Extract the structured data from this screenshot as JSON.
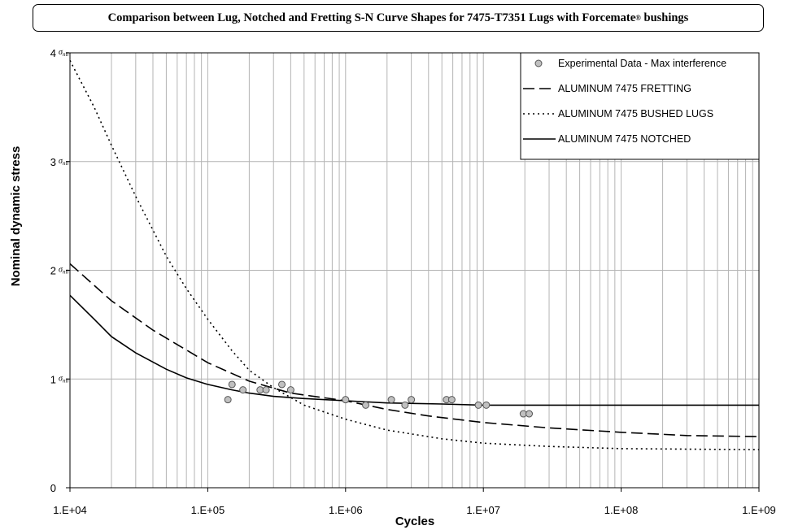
{
  "title": {
    "main": "Comparison between Lug, Notched and Fretting S-N Curve Shapes for 7475-T7351 Lugs with Forcemate",
    "sup": "®",
    "tail": " bushings"
  },
  "chart_data": {
    "type": "line",
    "xlabel": "Cycles",
    "ylabel": "Nominal dynamic stress",
    "x_scale": "log",
    "xlim": [
      10000,
      1000000000
    ],
    "ylim": [
      0,
      4
    ],
    "x_tick_labels": [
      "1.E+04",
      "1.E+05",
      "1.E+06",
      "1.E+07",
      "1.E+08",
      "1.E+09"
    ],
    "y_ticks": [
      0,
      1,
      2,
      3,
      4
    ],
    "y_tick_labels": [
      "0",
      "1",
      "2",
      "3",
      "4"
    ],
    "y_unit_symbol": "σ",
    "y_unit_subscript": "nil",
    "grid": true,
    "legend_position": "top-right",
    "series": [
      {
        "name": "Experimental Data - Max interference",
        "style": "markers",
        "color": "#c0c0c0",
        "points": [
          [
            140000,
            0.81
          ],
          [
            150000,
            0.95
          ],
          [
            180000,
            0.9
          ],
          [
            240000,
            0.9
          ],
          [
            265000,
            0.9
          ],
          [
            345000,
            0.95
          ],
          [
            400000,
            0.9
          ],
          [
            1000000,
            0.81
          ],
          [
            1400000,
            0.76
          ],
          [
            2150000,
            0.81
          ],
          [
            2700000,
            0.76
          ],
          [
            3000000,
            0.81
          ],
          [
            5400000,
            0.81
          ],
          [
            5900000,
            0.81
          ],
          [
            9200000,
            0.76
          ],
          [
            10500000,
            0.76
          ],
          [
            19500000,
            0.68
          ],
          [
            21500000,
            0.68
          ]
        ]
      },
      {
        "name": "ALUMINUM 7475 FRETTING",
        "style": "dashed",
        "color": "#000000",
        "points": [
          [
            10000,
            2.06
          ],
          [
            20000,
            1.72
          ],
          [
            40000,
            1.45
          ],
          [
            100000,
            1.15
          ],
          [
            200000,
            0.98
          ],
          [
            400000,
            0.87
          ],
          [
            1000000,
            0.8
          ],
          [
            2000000,
            0.72
          ],
          [
            4000000,
            0.66
          ],
          [
            10000000,
            0.6
          ],
          [
            30000000,
            0.55
          ],
          [
            100000000,
            0.51
          ],
          [
            300000000,
            0.48
          ],
          [
            1000000000,
            0.47
          ]
        ]
      },
      {
        "name": "ALUMINUM 7475 BUSHED LUGS",
        "style": "dotted",
        "color": "#000000",
        "points": [
          [
            10000,
            3.93
          ],
          [
            15000,
            3.5
          ],
          [
            20000,
            3.15
          ],
          [
            30000,
            2.68
          ],
          [
            50000,
            2.13
          ],
          [
            70000,
            1.83
          ],
          [
            100000,
            1.55
          ],
          [
            150000,
            1.26
          ],
          [
            200000,
            1.08
          ],
          [
            300000,
            0.92
          ],
          [
            500000,
            0.76
          ],
          [
            1000000,
            0.63
          ],
          [
            2000000,
            0.53
          ],
          [
            5000000,
            0.45
          ],
          [
            10000000,
            0.41
          ],
          [
            30000000,
            0.38
          ],
          [
            100000000,
            0.36
          ],
          [
            1000000000,
            0.35
          ]
        ]
      },
      {
        "name": "ALUMINUM 7475 NOTCHED",
        "style": "solid",
        "color": "#000000",
        "points": [
          [
            10000,
            1.77
          ],
          [
            15000,
            1.55
          ],
          [
            20000,
            1.39
          ],
          [
            30000,
            1.24
          ],
          [
            50000,
            1.09
          ],
          [
            70000,
            1.01
          ],
          [
            100000,
            0.95
          ],
          [
            150000,
            0.9
          ],
          [
            200000,
            0.87
          ],
          [
            300000,
            0.84
          ],
          [
            500000,
            0.82
          ],
          [
            1000000,
            0.8
          ],
          [
            2000000,
            0.78
          ],
          [
            5000000,
            0.77
          ],
          [
            10000000,
            0.76
          ],
          [
            100000000,
            0.76
          ],
          [
            1000000000,
            0.76
          ]
        ]
      }
    ]
  }
}
